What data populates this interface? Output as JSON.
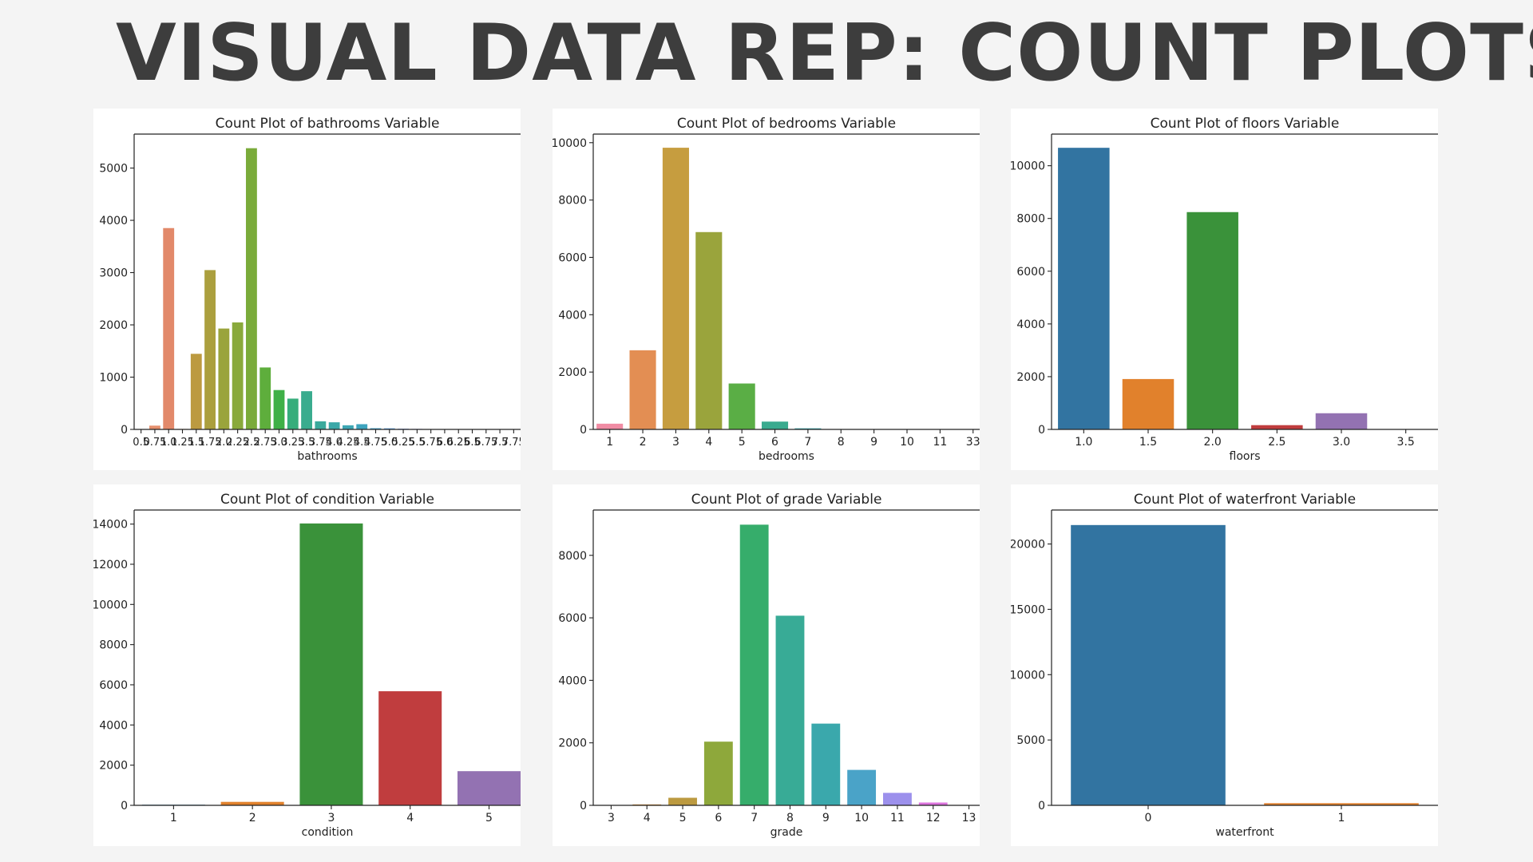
{
  "slide": {
    "title": "VISUAL DATA REP: COUNT PLOTS"
  },
  "chart_data": [
    {
      "type": "bar",
      "title": "Count Plot of bathrooms Variable",
      "xlabel": "bathrooms",
      "ylabel": "",
      "categories": [
        "0.5",
        "0.75",
        "1.0",
        "1.25",
        "1.5",
        "1.75",
        "2.0",
        "2.25",
        "2.5",
        "2.75",
        "3.0",
        "3.25",
        "3.5",
        "3.75",
        "4.0",
        "4.25",
        "4.5",
        "4.75",
        "5.0",
        "5.25",
        "5.5",
        "5.75",
        "6.0",
        "6.25",
        "6.5",
        "6.75",
        "7.5",
        "7.75"
      ],
      "values": [
        4,
        72,
        3852,
        9,
        1446,
        3048,
        1930,
        2047,
        5380,
        1185,
        753,
        589,
        731,
        155,
        136,
        79,
        100,
        23,
        21,
        13,
        10,
        4,
        6,
        2,
        2,
        2,
        1,
        1
      ],
      "colors": [
        "#ea96a3",
        "#e6906e",
        "#e2896a",
        "#cf9148",
        "#bc9a40",
        "#ab9f3e",
        "#9aa43c",
        "#89a93b",
        "#7aab3a",
        "#5eae3c",
        "#3fb047",
        "#36ad7b",
        "#39ac8e",
        "#3aaa9c",
        "#3ba8a8",
        "#3da6b3",
        "#3ea4be",
        "#43a2cb",
        "#5c9ddc",
        "#7a96e6",
        "#978deb",
        "#ad84ec",
        "#bf7bec",
        "#d071e8",
        "#df6ddc",
        "#e771c4",
        "#e87dae",
        "#e886a3"
      ],
      "yticks": [
        0,
        1000,
        2000,
        3000,
        4000,
        5000
      ],
      "ylim": [
        0,
        5650
      ],
      "xlim_categories": 28.0,
      "grid": false
    },
    {
      "type": "bar",
      "title": "Count Plot of bedrooms Variable",
      "xlabel": "bedrooms",
      "ylabel": "",
      "categories": [
        "1",
        "2",
        "3",
        "4",
        "5",
        "6",
        "7",
        "8",
        "9",
        "10",
        "11",
        "33"
      ],
      "values": [
        199,
        2760,
        9824,
        6882,
        1601,
        272,
        38,
        13,
        6,
        3,
        1,
        1
      ],
      "colors": [
        "#f08ca4",
        "#e38e53",
        "#c69d3f",
        "#9aa43c",
        "#5aae45",
        "#3aab8f",
        "#3aa7ab",
        "#3fa4c0",
        "#7a97e8",
        "#a887ee",
        "#d973e0",
        "#ea7fae"
      ],
      "yticks": [
        0,
        2000,
        4000,
        6000,
        8000,
        10000
      ],
      "ylim": [
        0,
        10300
      ],
      "xlim_categories": 11.7,
      "grid": false
    },
    {
      "type": "bar",
      "title": "Count Plot of floors Variable",
      "xlabel": "floors",
      "ylabel": "",
      "categories": [
        "1.0",
        "1.5",
        "2.0",
        "2.5",
        "3.0",
        "3.5"
      ],
      "values": [
        10680,
        1910,
        8241,
        161,
        613,
        8
      ],
      "colors": [
        "#3274a1",
        "#e1812c",
        "#3a923a",
        "#c03d3e",
        "#9372b2",
        "#845b53"
      ],
      "yticks": [
        0,
        2000,
        4000,
        6000,
        8000,
        10000
      ],
      "ylim": [
        0,
        11200
      ],
      "xlim_categories": 6.0,
      "grid": false
    },
    {
      "type": "bar",
      "title": "Count Plot of condition Variable",
      "xlabel": "condition",
      "ylabel": "",
      "categories": [
        "1",
        "2",
        "3",
        "4",
        "5"
      ],
      "values": [
        30,
        172,
        14031,
        5679,
        1701
      ],
      "colors": [
        "#3274a1",
        "#e1812c",
        "#3a923a",
        "#c03d3e",
        "#9372b2"
      ],
      "yticks": [
        0,
        2000,
        4000,
        6000,
        8000,
        10000,
        12000,
        14000
      ],
      "ylim": [
        0,
        14700
      ],
      "xlim_categories": 4.9,
      "grid": false
    },
    {
      "type": "bar",
      "title": "Count Plot of grade Variable",
      "xlabel": "grade",
      "ylabel": "",
      "categories": [
        "3",
        "4",
        "5",
        "6",
        "7",
        "8",
        "9",
        "10",
        "11",
        "12",
        "13"
      ],
      "values": [
        1,
        29,
        242,
        2038,
        8981,
        6068,
        2615,
        1134,
        399,
        90,
        13
      ],
      "colors": [
        "#f08ca4",
        "#db9538",
        "#bc9a40",
        "#8ea83b",
        "#36ad6b",
        "#38ab96",
        "#3aa8ac",
        "#4aa3c8",
        "#9c90ec",
        "#dd74de",
        "#ea80ae"
      ],
      "yticks": [
        0,
        2000,
        4000,
        6000,
        8000
      ],
      "ylim": [
        0,
        9450
      ],
      "xlim_categories": 10.8,
      "grid": false
    },
    {
      "type": "bar",
      "title": "Count Plot of waterfront Variable",
      "xlabel": "waterfront",
      "ylabel": "",
      "categories": [
        "0",
        "1"
      ],
      "values": [
        21450,
        163
      ],
      "colors": [
        "#3274a1",
        "#e1812c"
      ],
      "yticks": [
        0,
        5000,
        10000,
        15000,
        20000
      ],
      "ylim": [
        0,
        22600
      ],
      "xlim_categories": 2.0,
      "grid": false
    }
  ]
}
